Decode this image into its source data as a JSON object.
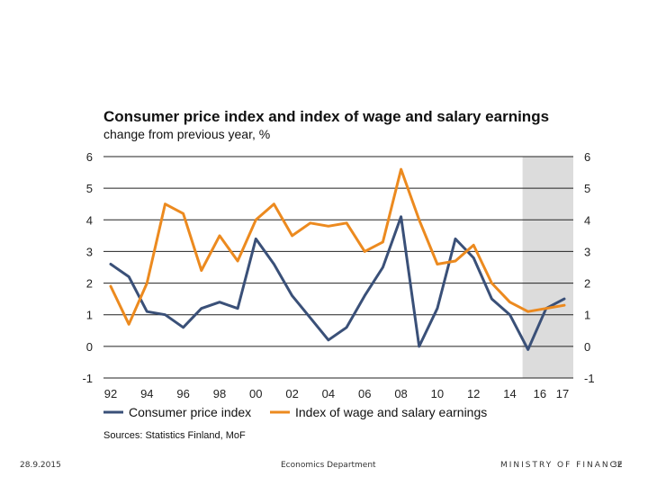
{
  "slide": {
    "title": "Consumer price index and index of wage and salary earnings",
    "subtitle": "change from previous year, %",
    "sources": "Sources: Statistics Finland, MoF"
  },
  "footer": {
    "date": "28.9.2015",
    "department": "Economics Department",
    "ministry": "MINISTRY OF FINANCE",
    "page": "32"
  },
  "colors": {
    "cpi": "#3a5078",
    "wage": "#ec8a1f",
    "forecast_shade": "#dcdcdc",
    "grid": "#222222"
  },
  "chart_data": {
    "type": "line",
    "title": "Consumer price index and index of wage and salary earnings",
    "subtitle": "change from previous year, %",
    "xlabel": "",
    "ylabel": "",
    "x": [
      1992,
      1993,
      1994,
      1995,
      1996,
      1997,
      1998,
      1999,
      2000,
      2001,
      2002,
      2003,
      2004,
      2005,
      2006,
      2007,
      2008,
      2009,
      2010,
      2011,
      2012,
      2013,
      2014,
      2015,
      2016,
      2017
    ],
    "xlim": [
      1992,
      2017
    ],
    "ylim": [
      -1,
      6
    ],
    "y_ticks": [
      "-1",
      "0",
      "1",
      "2",
      "3",
      "4",
      "5",
      "6"
    ],
    "x_tick_labels": [
      {
        "year": 1992,
        "label": "92"
      },
      {
        "year": 1994,
        "label": "94"
      },
      {
        "year": 1996,
        "label": "96"
      },
      {
        "year": 1998,
        "label": "98"
      },
      {
        "year": 2000,
        "label": "00"
      },
      {
        "year": 2002,
        "label": "02"
      },
      {
        "year": 2004,
        "label": "04"
      },
      {
        "year": 2006,
        "label": "06"
      },
      {
        "year": 2008,
        "label": "08"
      },
      {
        "year": 2010,
        "label": "10"
      },
      {
        "year": 2012,
        "label": "12"
      },
      {
        "year": 2014,
        "label": "14"
      },
      {
        "year": 2016,
        "label": "16"
      },
      {
        "year": 2017,
        "label": "17"
      }
    ],
    "forecast_range": [
      2014.7,
      2017.5
    ],
    "grid": "horizontal",
    "legend_position": "bottom",
    "series": [
      {
        "name": "Consumer price index",
        "color": "#3a5078",
        "values": [
          2.6,
          2.2,
          1.1,
          1.0,
          0.6,
          1.2,
          1.4,
          1.2,
          3.4,
          2.6,
          1.6,
          0.9,
          0.2,
          0.6,
          1.6,
          2.5,
          4.1,
          0.0,
          1.2,
          3.4,
          2.8,
          1.5,
          1.0,
          -0.1,
          1.2,
          1.5
        ]
      },
      {
        "name": "Index of wage and salary earnings",
        "color": "#ec8a1f",
        "values": [
          1.9,
          0.7,
          2.0,
          4.5,
          4.2,
          2.4,
          3.5,
          2.7,
          4.0,
          4.5,
          3.5,
          3.9,
          3.8,
          3.9,
          3.0,
          3.3,
          5.6,
          4.0,
          2.6,
          2.7,
          3.2,
          2.0,
          1.4,
          1.1,
          1.2,
          1.3
        ]
      }
    ]
  }
}
